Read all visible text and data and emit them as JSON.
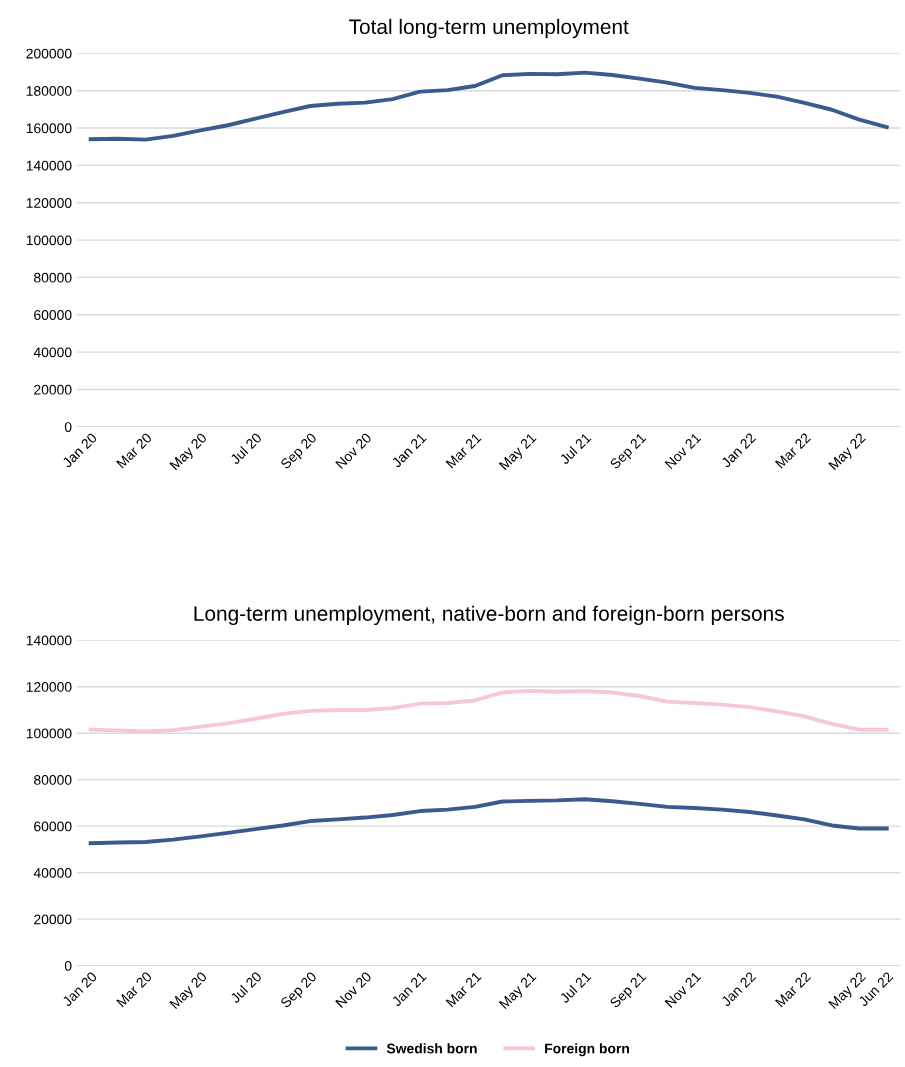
{
  "chart_data": [
    {
      "type": "line",
      "title": "Total long-term unemployment",
      "categories": [
        "Jan 20",
        null,
        "Mar 20",
        null,
        "May 20",
        null,
        "Jul 20",
        null,
        "Sep 20",
        null,
        "Nov 20",
        null,
        "Jan 21",
        null,
        "Mar 21",
        null,
        "May 21",
        null,
        "Jul 21",
        null,
        "Sep 21",
        null,
        "Nov 21",
        null,
        "Jan 22",
        null,
        "Mar 22",
        null,
        "May 22",
        null
      ],
      "series": [
        {
          "color": "#3b5b8e",
          "values": [
            154000,
            154300,
            153800,
            155800,
            158800,
            161500,
            165000,
            168500,
            171800,
            173000,
            173600,
            175500,
            179500,
            180300,
            182500,
            188300,
            189000,
            188800,
            189700,
            188400,
            186500,
            184300,
            181500,
            180300,
            178800,
            176800,
            173500,
            169800,
            164500,
            160500
          ]
        }
      ],
      "ylim": [
        0,
        200000
      ],
      "yticks": [
        0,
        20000,
        40000,
        60000,
        80000,
        100000,
        120000,
        140000,
        160000,
        180000,
        200000
      ],
      "grid": "y",
      "legend": false
    },
    {
      "type": "line",
      "title": "Long-term unemployment, native-born and foreign-born persons",
      "categories": [
        "Jan 20",
        null,
        "Mar 20",
        null,
        "May 20",
        null,
        "Jul 20",
        null,
        "Sep 20",
        null,
        "Nov 20",
        null,
        "Jan 21",
        null,
        "Mar 21",
        null,
        "May 21",
        null,
        "Jul 21",
        null,
        "Sep 21",
        null,
        "Nov 21",
        null,
        "Jan 22",
        null,
        "Mar 22",
        null,
        "May 22",
        "Jun 22"
      ],
      "series": [
        {
          "name": "Swedish born",
          "color": "#3b5b8e",
          "values": [
            52700,
            53000,
            53200,
            54200,
            55600,
            57100,
            58700,
            60300,
            62200,
            62900,
            63700,
            64800,
            66500,
            67100,
            68300,
            70600,
            70900,
            71100,
            71600,
            70700,
            69600,
            68300,
            67800,
            67100,
            66100,
            64600,
            62900,
            60300,
            59000,
            59000
          ]
        },
        {
          "name": "Foreign born",
          "color": "#f7c6d9",
          "values": [
            101500,
            101200,
            100700,
            101300,
            102800,
            104200,
            106200,
            108300,
            109600,
            110000,
            110000,
            110800,
            112700,
            113000,
            114100,
            117500,
            118200,
            117800,
            118100,
            117500,
            116000,
            113600,
            113000,
            112300,
            111200,
            109400,
            107200,
            104000,
            101500,
            101500
          ]
        }
      ],
      "ylim": [
        0,
        140000
      ],
      "yticks": [
        0,
        20000,
        40000,
        60000,
        80000,
        100000,
        120000,
        140000
      ],
      "grid": "y",
      "legend": "bottom"
    }
  ]
}
